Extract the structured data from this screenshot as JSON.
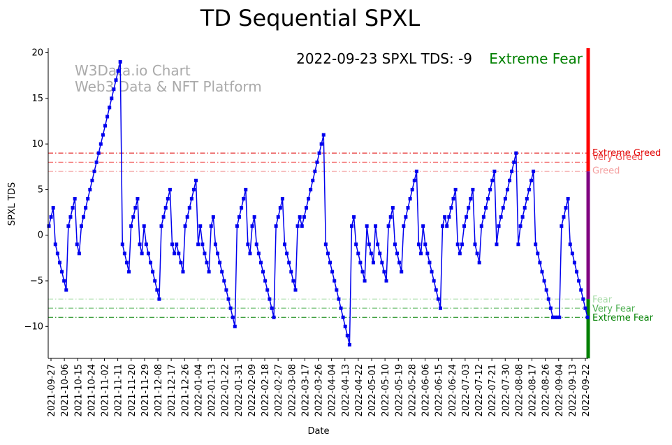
{
  "chart_data": {
    "type": "line",
    "title": "TD Sequential SPXL",
    "xlabel": "Date",
    "ylabel": "SPXL TDS",
    "ylim": [
      -13.5,
      20.5
    ],
    "yticks": [
      -10,
      -5,
      0,
      5,
      10,
      15,
      20
    ],
    "ytick_labels": [
      "−10",
      "−5",
      "0",
      "5",
      "10",
      "15",
      "20"
    ],
    "watermark": [
      "W3Data.io Chart",
      "Web3 Data & NFT Platform"
    ],
    "annotation": "2022-09-23 SPXL TDS: -9",
    "status": {
      "label": "Extreme Fear",
      "color": "#008000"
    },
    "line_color": "#0000ee",
    "x_tick_labels": [
      "2021-09-27",
      "2021-10-06",
      "2021-10-15",
      "2021-10-24",
      "2021-11-02",
      "2021-11-11",
      "2021-11-20",
      "2021-11-29",
      "2021-12-08",
      "2021-12-17",
      "2021-12-26",
      "2022-01-04",
      "2022-01-13",
      "2022-01-22",
      "2022-01-31",
      "2022-02-09",
      "2022-02-18",
      "2022-02-27",
      "2022-03-08",
      "2022-03-17",
      "2022-03-26",
      "2022-04-04",
      "2022-04-13",
      "2022-04-22",
      "2022-05-01",
      "2022-05-10",
      "2022-05-19",
      "2022-05-28",
      "2022-06-06",
      "2022-06-15",
      "2022-06-24",
      "2022-07-03",
      "2022-07-12",
      "2022-07-21",
      "2022-07-30",
      "2022-08-08",
      "2022-08-17",
      "2022-08-26",
      "2022-09-04",
      "2022-09-13",
      "2022-09-22"
    ],
    "thresholds": [
      {
        "label": "Extreme Greed",
        "value": 9,
        "color": "#e00000"
      },
      {
        "label": "Very Greed",
        "value": 8,
        "color": "#f05050"
      },
      {
        "label": "Greed",
        "value": 7,
        "color": "#f4a0a0"
      },
      {
        "label": "Fear",
        "value": -7,
        "color": "#a8dca8"
      },
      {
        "label": "Very Fear",
        "value": -8,
        "color": "#4caf50"
      },
      {
        "label": "Extreme Fear",
        "value": -9,
        "color": "#008000"
      }
    ],
    "side_bar": [
      {
        "from": 7,
        "to": 20.5,
        "color": "#ff0000"
      },
      {
        "from": -7,
        "to": 7,
        "color": "#800080"
      },
      {
        "from": -13.5,
        "to": -7,
        "color": "#008000"
      }
    ],
    "series": [
      {
        "name": "SPXL TDS",
        "values": [
          1,
          2,
          3,
          -1,
          -2,
          -3,
          -4,
          -5,
          -6,
          1,
          2,
          3,
          4,
          -1,
          -2,
          1,
          2,
          3,
          4,
          5,
          6,
          7,
          8,
          9,
          10,
          11,
          12,
          13,
          14,
          15,
          16,
          17,
          18,
          19,
          -1,
          -2,
          -3,
          -4,
          1,
          2,
          3,
          4,
          -1,
          -2,
          1,
          -1,
          -2,
          -3,
          -4,
          -5,
          -6,
          -7,
          1,
          2,
          3,
          4,
          5,
          -1,
          -2,
          -1,
          -2,
          -3,
          -4,
          1,
          2,
          3,
          4,
          5,
          6,
          -1,
          1,
          -1,
          -2,
          -3,
          -4,
          1,
          2,
          -1,
          -2,
          -3,
          -4,
          -5,
          -6,
          -7,
          -8,
          -9,
          -10,
          1,
          2,
          3,
          4,
          5,
          -1,
          -2,
          1,
          2,
          -1,
          -2,
          -3,
          -4,
          -5,
          -6,
          -7,
          -8,
          -9,
          1,
          2,
          3,
          4,
          -1,
          -2,
          -3,
          -4,
          -5,
          -6,
          1,
          2,
          1,
          2,
          3,
          4,
          5,
          6,
          7,
          8,
          9,
          10,
          11,
          -1,
          -2,
          -3,
          -4,
          -5,
          -6,
          -7,
          -8,
          -9,
          -10,
          -11,
          -12,
          1,
          2,
          -1,
          -2,
          -3,
          -4,
          -5,
          1,
          -1,
          -2,
          -3,
          1,
          -1,
          -2,
          -3,
          -4,
          -5,
          1,
          2,
          3,
          -1,
          -2,
          -3,
          -4,
          1,
          2,
          3,
          4,
          5,
          6,
          7,
          -1,
          -2,
          1,
          -1,
          -2,
          -3,
          -4,
          -5,
          -6,
          -7,
          -8,
          1,
          2,
          1,
          2,
          3,
          4,
          5,
          -1,
          -2,
          -1,
          1,
          2,
          3,
          4,
          5,
          -1,
          -2,
          -3,
          1,
          2,
          3,
          4,
          5,
          6,
          7,
          -1,
          1,
          2,
          3,
          4,
          5,
          6,
          7,
          8,
          9,
          -1,
          1,
          2,
          3,
          4,
          5,
          6,
          7,
          -1,
          -2,
          -3,
          -4,
          -5,
          -6,
          -7,
          -8,
          -9,
          -9,
          -9,
          -9,
          1,
          2,
          3,
          4,
          -1,
          -2,
          -3,
          -4,
          -5,
          -6,
          -7,
          -8,
          -9
        ]
      }
    ]
  }
}
